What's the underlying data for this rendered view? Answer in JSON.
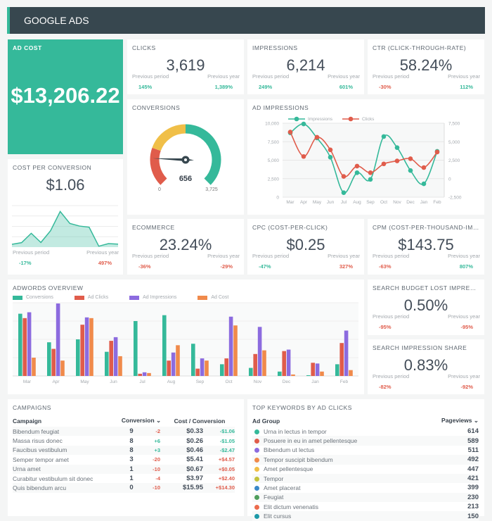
{
  "header": {
    "title": "GOOGLE ADS"
  },
  "ad_cost": {
    "title": "AD COST",
    "value": "$13,206.22"
  },
  "prev_period_label": "Previous period",
  "prev_year_label": "Previous year",
  "kpis": [
    {
      "id": "clicks",
      "title": "CLICKS",
      "value": "3,619",
      "prev_period": "145%",
      "prev_period_trend": "good",
      "prev_year": "1,389%",
      "prev_year_trend": "good"
    },
    {
      "id": "impressions",
      "title": "IMPRESSIONS",
      "value": "6,214",
      "prev_period": "249%",
      "prev_period_trend": "good",
      "prev_year": "601%",
      "prev_year_trend": "good"
    },
    {
      "id": "ctr",
      "title": "CTR (CLICK-THROUGH-RATE)",
      "value": "58.24%",
      "prev_period": "-30%",
      "prev_period_trend": "bad",
      "prev_year": "112%",
      "prev_year_trend": "good"
    },
    {
      "id": "ecommerce",
      "title": "ECOMMERCE",
      "value": "23.24%",
      "prev_period": "-36%",
      "prev_period_trend": "bad",
      "prev_year": "-29%",
      "prev_year_trend": "bad"
    },
    {
      "id": "cpc",
      "title": "CPC (COST-PER-CLICK)",
      "value": "$0.25",
      "prev_period": "-47%",
      "prev_period_trend": "good",
      "prev_year": "327%",
      "prev_year_trend": "bad"
    },
    {
      "id": "cpm",
      "title": "CPM (COST-PER-THOUSAND-IMP...",
      "value": "$143.75",
      "prev_period": "-63%",
      "prev_period_trend": "bad",
      "prev_year": "807%",
      "prev_year_trend": "good"
    },
    {
      "id": "search-budget-lost",
      "title": "SEARCH BUDGET LOST IMPRESSI...",
      "value": "0.50%",
      "prev_period": "-95%",
      "prev_period_trend": "bad",
      "prev_year": "-95%",
      "prev_year_trend": "bad"
    },
    {
      "id": "search-impression-share",
      "title": "SEARCH IMPRESSION SHARE",
      "value": "0.83%",
      "prev_period": "-82%",
      "prev_period_trend": "bad",
      "prev_year": "-92%",
      "prev_year_trend": "bad"
    }
  ],
  "cost_per_conversion": {
    "title": "COST PER CONVERSION",
    "value": "$1.06",
    "prev_period": "-17%",
    "prev_period_trend": "good",
    "prev_year": "497%",
    "prev_year_trend": "bad"
  },
  "colors": {
    "teal": "#35b99a",
    "red": "#e05c4b",
    "yellow": "#f0bf48",
    "purple": "#8c6bdf",
    "orange": "#f08a4b",
    "header": "#37474f"
  },
  "chart_data": [
    {
      "id": "cost-per-conversion-sparkline",
      "type": "area",
      "values": [
        0.27,
        0.43,
        1.33,
        0.45,
        1.58,
        3.43,
        2.28,
        2.03,
        1.92,
        0.09,
        0.34,
        0.29
      ],
      "ylim": [
        0,
        4
      ],
      "grid": true
    },
    {
      "id": "conversions-gauge",
      "type": "gauge",
      "title": "CONVERSIONS",
      "value": 656,
      "value_label": "656",
      "min": 0,
      "max": 3725,
      "min_label": "0",
      "max_label": "3,725",
      "bands": [
        {
          "to": 0.24,
          "color": "#e05c4b"
        },
        {
          "to": 0.5,
          "color": "#f0bf48"
        },
        {
          "to": 1,
          "color": "#35b99a"
        }
      ]
    },
    {
      "id": "ad-impressions",
      "type": "line",
      "title": "AD IMPRESSIONS",
      "categories": [
        "Mar",
        "Apr",
        "May",
        "Jun",
        "Jul",
        "Aug",
        "Sep",
        "Oct",
        "Nov",
        "Dec",
        "Jan",
        "Feb"
      ],
      "series": [
        {
          "name": "Impressions",
          "axis": "left",
          "color": "#35b99a",
          "values": [
            8700,
            9900,
            8000,
            5400,
            600,
            3300,
            2400,
            8200,
            6700,
            3600,
            1800,
            6200
          ]
        },
        {
          "name": "Clicks",
          "axis": "right",
          "color": "#e05c4b",
          "values": [
            6300,
            3000,
            5600,
            3900,
            300,
            1700,
            800,
            2000,
            2400,
            2700,
            1500,
            3600
          ]
        }
      ],
      "ylim_left": [
        0,
        10000
      ],
      "yticks_left": [
        "10,000",
        "7,500",
        "5,000",
        "2,500",
        "0"
      ],
      "ylim_right": [
        -2500,
        7500
      ],
      "yticks_right": [
        "7,500",
        "5,000",
        "2,500",
        "0",
        "-2,500"
      ],
      "legend": "top-left",
      "grid": true
    },
    {
      "id": "adwords-overview",
      "type": "bar",
      "title": "ADWORDS OVERVIEW",
      "categories": [
        "Mar",
        "Apr",
        "May",
        "Jun",
        "Jul",
        "Aug",
        "Sep",
        "Oct",
        "Nov",
        "Dec",
        "Jan",
        "Feb"
      ],
      "series": [
        {
          "name": "Conversions",
          "color": "#35b99a",
          "values": [
            85,
            46,
            50,
            33,
            75,
            83,
            44,
            16,
            11,
            6,
            1,
            16
          ]
        },
        {
          "name": "Ad Clicks",
          "color": "#e05c4b",
          "values": [
            79,
            37,
            70,
            48,
            3,
            21,
            10,
            24,
            30,
            34,
            18,
            45
          ]
        },
        {
          "name": "Ad Impressions",
          "color": "#8c6bdf",
          "values": [
            87,
            99,
            80,
            53,
            5,
            32,
            24,
            81,
            67,
            36,
            17,
            62
          ]
        },
        {
          "name": "Ad Cost",
          "color": "#f08a4b",
          "values": [
            25,
            21,
            79,
            27,
            4,
            42,
            21,
            69,
            35,
            2,
            6,
            8
          ]
        }
      ],
      "ylim": [
        0,
        100
      ],
      "legend": "top-left",
      "grid": true
    }
  ],
  "campaigns": {
    "title": "CAMPAIGNS",
    "headers": [
      "Campaign",
      "Conversion",
      "Cost / Conversion"
    ],
    "rows": [
      {
        "name": "Bibendum feugiat",
        "conv": "9",
        "conv_delta": "-2",
        "conv_trend": "bad",
        "cost": "$0.33",
        "cost_delta": "-$1.06",
        "cost_trend": "good"
      },
      {
        "name": "Massa risus donec",
        "conv": "8",
        "conv_delta": "+6",
        "conv_trend": "good",
        "cost": "$0.26",
        "cost_delta": "-$1.05",
        "cost_trend": "good"
      },
      {
        "name": "Faucibus vestibulum",
        "conv": "8",
        "conv_delta": "+3",
        "conv_trend": "good",
        "cost": "$0.46",
        "cost_delta": "-$2.47",
        "cost_trend": "good"
      },
      {
        "name": "Semper tempor amet",
        "conv": "3",
        "conv_delta": "-20",
        "conv_trend": "bad",
        "cost": "$5.41",
        "cost_delta": "+$4.57",
        "cost_trend": "bad"
      },
      {
        "name": "Urna amet",
        "conv": "1",
        "conv_delta": "-10",
        "conv_trend": "bad",
        "cost": "$0.67",
        "cost_delta": "+$0.05",
        "cost_trend": "bad"
      },
      {
        "name": "Curabitur vestibulum sit donec",
        "conv": "1",
        "conv_delta": "-4",
        "conv_trend": "bad",
        "cost": "$3.97",
        "cost_delta": "+$2.40",
        "cost_trend": "bad"
      },
      {
        "name": "Quis bibendum arcu",
        "conv": "0",
        "conv_delta": "-10",
        "conv_trend": "bad",
        "cost": "$15.95",
        "cost_delta": "+$14.30",
        "cost_trend": "bad"
      }
    ]
  },
  "keywords": {
    "title": "TOP KEYWORDS BY AD CLICKS",
    "headers": [
      "Ad Group",
      "Pageviews"
    ],
    "rows": [
      {
        "name": "Urna in lectus in tempor",
        "value": "614",
        "color": "#35b99a"
      },
      {
        "name": "Posuere in eu in amet pellentesque",
        "value": "589",
        "color": "#e05c4b"
      },
      {
        "name": "Bibendum ut lectus",
        "value": "511",
        "color": "#8c6bdf"
      },
      {
        "name": "Tempor suscipit bibendum",
        "value": "492",
        "color": "#f08a4b"
      },
      {
        "name": "Amet pellentesque",
        "value": "447",
        "color": "#f0bf48"
      },
      {
        "name": "Tempor",
        "value": "421",
        "color": "#c3c23c"
      },
      {
        "name": "Amet placerat",
        "value": "399",
        "color": "#3a89c9"
      },
      {
        "name": "Feugiat",
        "value": "230",
        "color": "#4f9e5c"
      },
      {
        "name": "Elit dictum venenatis",
        "value": "213",
        "color": "#ec6b4d"
      },
      {
        "name": "Elit cursus",
        "value": "150",
        "color": "#1d9aa8"
      }
    ]
  }
}
